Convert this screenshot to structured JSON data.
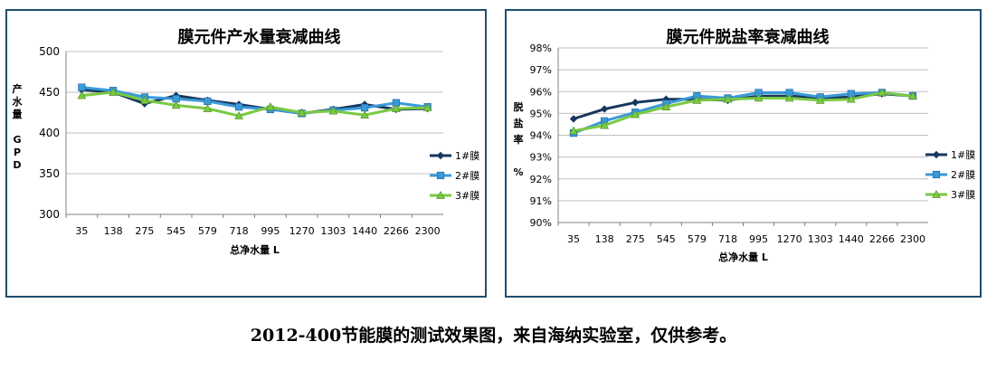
{
  "caption": "2012-400节能膜的测试效果图，来自海纳实验室，仅供参考。",
  "chart_data": [
    {
      "type": "line",
      "title": "膜元件产水量衰减曲线",
      "xlabel": "总净水量 L",
      "ylabel": "产水量GPD",
      "ylabel_lines": [
        "产",
        "水",
        "量",
        "",
        "G",
        "P",
        "D"
      ],
      "categories": [
        "35",
        "138",
        "275",
        "545",
        "579",
        "718",
        "995",
        "1270",
        "1303",
        "1440",
        "2266",
        "2300"
      ],
      "ylim": [
        300,
        500
      ],
      "yticks": [
        300,
        350,
        400,
        450,
        500
      ],
      "ytick_labels": [
        "300",
        "350",
        "400",
        "450",
        "500"
      ],
      "grid": true,
      "legend_position": "right",
      "series": [
        {
          "name": "1#膜",
          "color": "#17375E",
          "marker": "diamond",
          "values": [
            453,
            450,
            436,
            446,
            440,
            435,
            429,
            424,
            429,
            435,
            429,
            430
          ]
        },
        {
          "name": "2#膜",
          "color": "#3A9AD9",
          "marker": "square",
          "values": [
            456,
            452,
            444,
            442,
            439,
            432,
            429,
            424,
            428,
            431,
            437,
            432
          ]
        },
        {
          "name": "3#膜",
          "color": "#7AC943",
          "marker": "triangle",
          "values": [
            446,
            450,
            440,
            434,
            430,
            421,
            432,
            425,
            427,
            422,
            430,
            431
          ]
        }
      ]
    },
    {
      "type": "line",
      "title": "膜元件脱盐率衰减曲线",
      "xlabel": "总净水量 L",
      "ylabel": "脱盐率%",
      "ylabel_lines": [
        "脱",
        "盐",
        "率",
        "",
        "%"
      ],
      "categories": [
        "35",
        "138",
        "275",
        "545",
        "579",
        "718",
        "995",
        "1270",
        "1303",
        "1440",
        "2266",
        "2300"
      ],
      "ylim": [
        90,
        98
      ],
      "yticks": [
        90,
        91,
        92,
        93,
        94,
        95,
        96,
        97,
        98
      ],
      "ytick_labels": [
        "90%",
        "91%",
        "92%",
        "93%",
        "94%",
        "95%",
        "96%",
        "97%",
        "98%"
      ],
      "grid": true,
      "legend_position": "right",
      "series": [
        {
          "name": "1#膜",
          "color": "#17375E",
          "marker": "diamond",
          "values": [
            94.75,
            95.2,
            95.5,
            95.65,
            95.65,
            95.6,
            95.8,
            95.8,
            95.7,
            95.75,
            95.9,
            95.8
          ]
        },
        {
          "name": "2#膜",
          "color": "#3A9AD9",
          "marker": "square",
          "values": [
            94.1,
            94.65,
            95.05,
            95.45,
            95.8,
            95.7,
            95.95,
            95.95,
            95.75,
            95.9,
            95.95,
            95.8
          ]
        },
        {
          "name": "3#膜",
          "color": "#7AC943",
          "marker": "triangle",
          "values": [
            94.2,
            94.45,
            94.95,
            95.3,
            95.6,
            95.65,
            95.7,
            95.7,
            95.6,
            95.65,
            95.95,
            95.8
          ]
        }
      ]
    }
  ]
}
